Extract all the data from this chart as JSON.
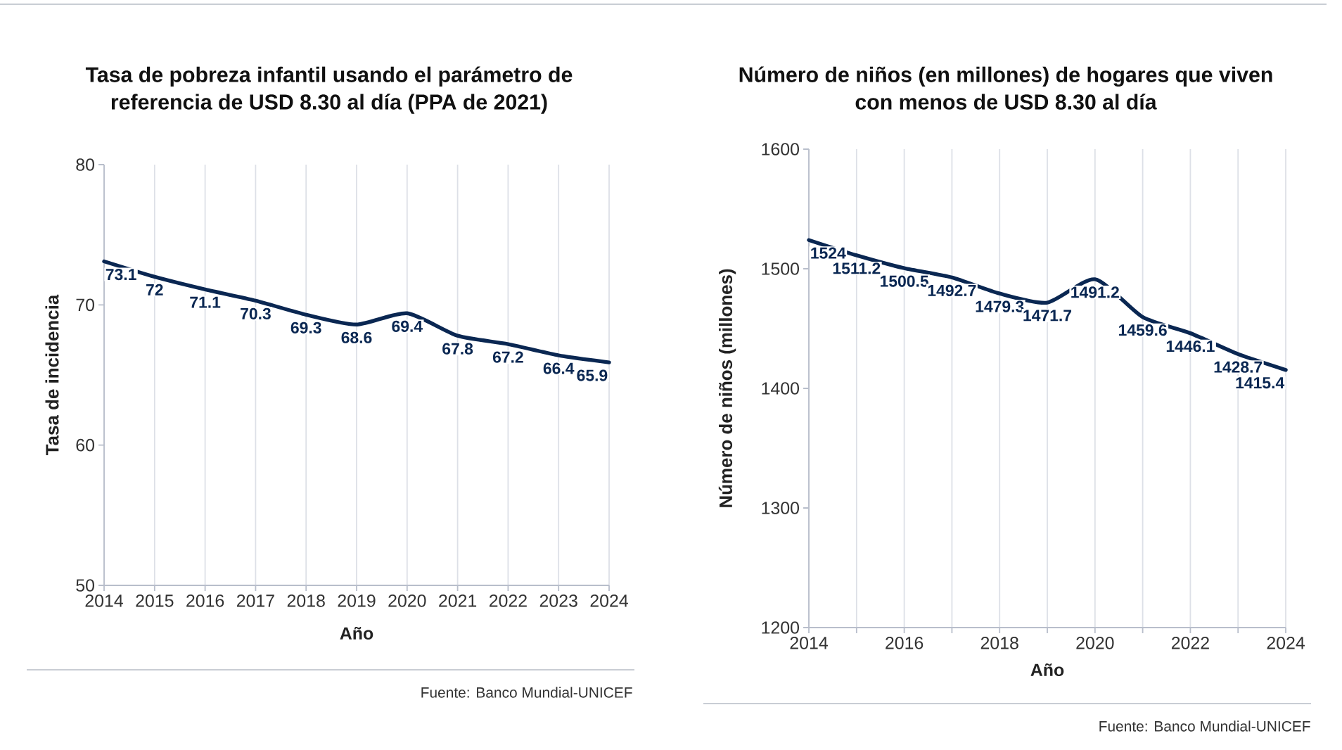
{
  "chart_data": [
    {
      "type": "line",
      "title": "Tasa de pobreza infantil usando el parámetro de referencia de USD 8.30 al día (PPA de 2021)",
      "xlabel": "Año",
      "ylabel": "Tasa de incidencia",
      "x": [
        2014,
        2015,
        2016,
        2017,
        2018,
        2019,
        2020,
        2021,
        2022,
        2023,
        2024
      ],
      "values": [
        73.1,
        72,
        71.1,
        70.3,
        69.3,
        68.6,
        69.4,
        67.8,
        67.2,
        66.4,
        65.9
      ],
      "color": "#0a2752",
      "xlim": [
        2014,
        2024
      ],
      "xticks": [
        2014,
        2015,
        2016,
        2017,
        2018,
        2019,
        2020,
        2021,
        2022,
        2023,
        2024
      ],
      "ylim": [
        50,
        80
      ],
      "yticks": [
        50,
        60,
        70,
        80
      ],
      "grid": "x",
      "data_labels": true,
      "annotations": [
        "Fuente: Banco Mundial-UNICEF"
      ]
    },
    {
      "type": "line",
      "title": "Número de niños (en millones) de hogares que viven con menos de USD 8.30 al día",
      "xlabel": "Año",
      "ylabel": "Número de niños (millones)",
      "x": [
        2014,
        2015,
        2016,
        2017,
        2018,
        2019,
        2020,
        2021,
        2022,
        2023,
        2024
      ],
      "values": [
        1524,
        1511.2,
        1500.5,
        1492.7,
        1479.3,
        1471.7,
        1491.2,
        1459.6,
        1446.1,
        1428.7,
        1415.4
      ],
      "color": "#0a2752",
      "xlim": [
        2014,
        2024
      ],
      "xticks": [
        2014,
        {
          "value": 2015,
          "label": null
        },
        2016,
        {
          "value": 2017,
          "label": null
        },
        2018,
        {
          "value": 2019,
          "label": null
        },
        2020,
        {
          "value": 2021,
          "label": null
        },
        2022,
        {
          "value": 2023,
          "label": null
        },
        2024
      ],
      "ylim": [
        1200,
        1600
      ],
      "yticks": [
        1200,
        1300,
        1400,
        1500,
        1600
      ],
      "grid": "x",
      "data_labels": true,
      "annotations": [
        "Fuente: Banco Mundial-UNICEF"
      ]
    }
  ]
}
